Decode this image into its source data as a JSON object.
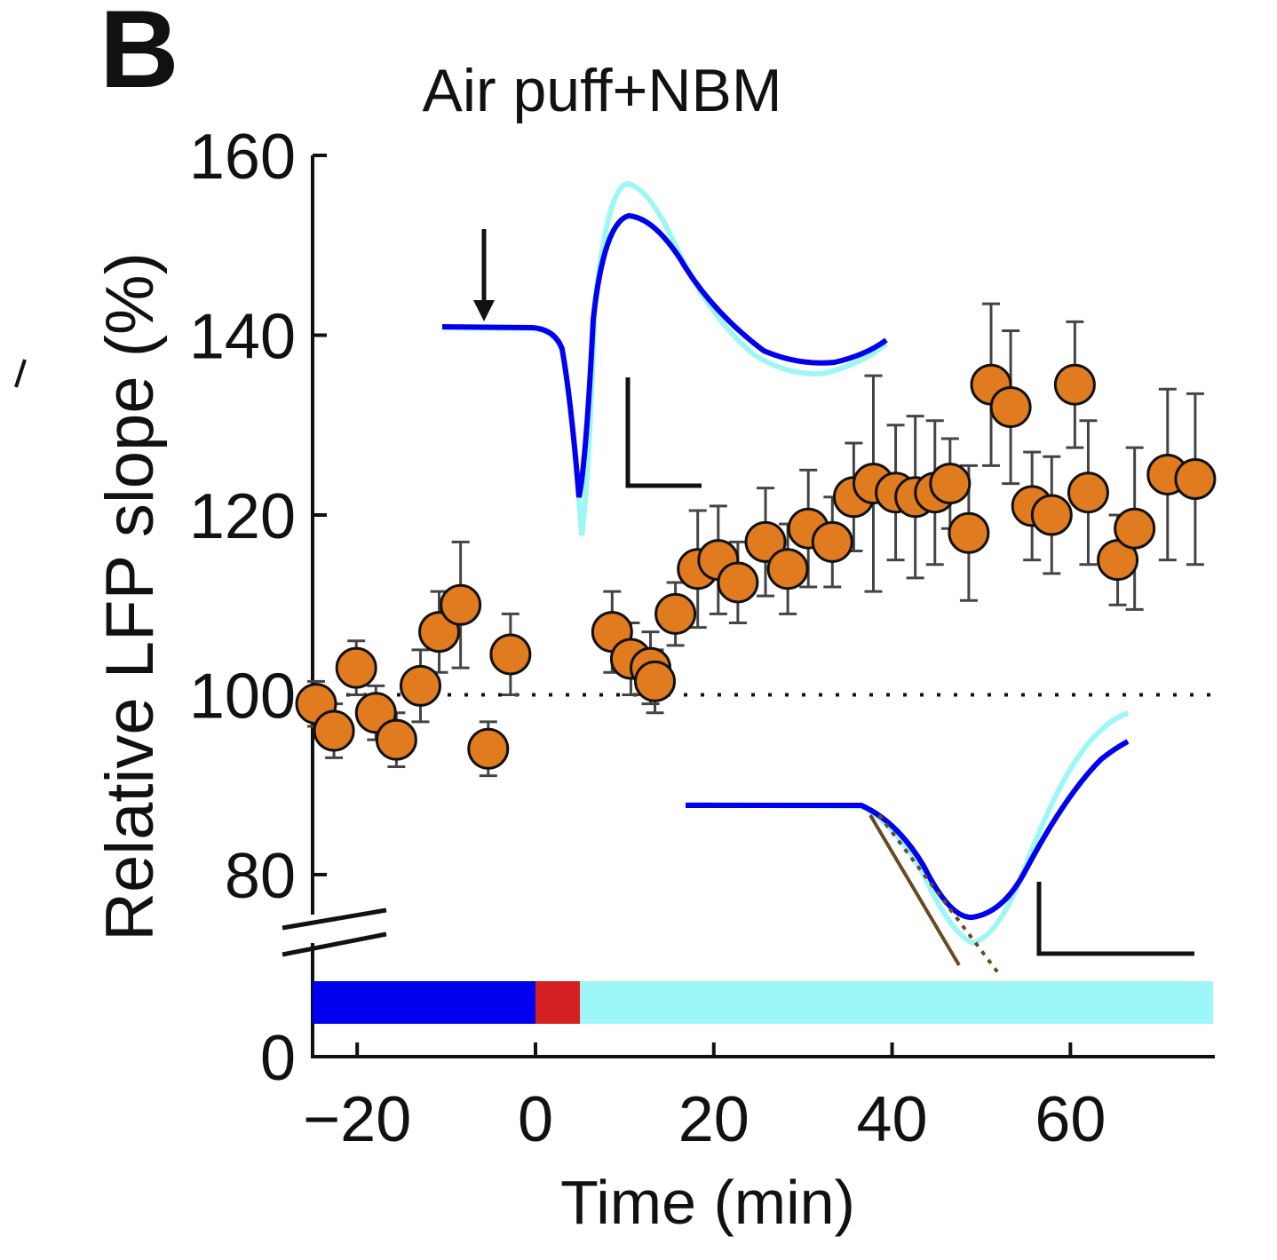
{
  "panel_label": "B",
  "chart_data": {
    "type": "scatter",
    "title": "Air puff+NBM",
    "xlabel": "Time (min)",
    "ylabel": "Relative LFP slope (%)",
    "x_ticks": [
      -20,
      0,
      20,
      40,
      60
    ],
    "x_tick_labels": [
      "−20",
      "0",
      "20",
      "40",
      "60"
    ],
    "y_ticks": [
      0,
      80,
      100,
      120,
      140,
      160
    ],
    "y_tick_labels": [
      "0",
      "80",
      "100",
      "120",
      "140",
      "160"
    ],
    "xlim": [
      -25,
      76
    ],
    "ylim": [
      0,
      160
    ],
    "y_axis_break": [
      0,
      80
    ],
    "reference_line": 100,
    "marker_color": "#e07b20",
    "condition_bar": [
      {
        "start": -25,
        "end": 0,
        "color": "#0000ee"
      },
      {
        "start": 0,
        "end": 5,
        "color": "#d42020"
      },
      {
        "start": 5,
        "end": 76,
        "color": "#9ef7f7"
      }
    ],
    "points": [
      {
        "x": -24.6,
        "y": 99,
        "err": 2.5
      },
      {
        "x": -22.6,
        "y": 96,
        "err": 3.0
      },
      {
        "x": -20.1,
        "y": 103,
        "err": 3.0
      },
      {
        "x": -17.9,
        "y": 98,
        "err": 3.0
      },
      {
        "x": -15.6,
        "y": 95,
        "err": 3.0
      },
      {
        "x": -12.9,
        "y": 101,
        "err": 4.0
      },
      {
        "x": -10.8,
        "y": 107,
        "err": 4.5
      },
      {
        "x": -8.4,
        "y": 110,
        "err": 7.0
      },
      {
        "x": -5.3,
        "y": 94,
        "err": 3.0
      },
      {
        "x": -2.8,
        "y": 104.5,
        "err": 4.5
      },
      {
        "x": 8.6,
        "y": 107,
        "err": 4.5
      },
      {
        "x": 10.7,
        "y": 104,
        "err": 4.0
      },
      {
        "x": 12.9,
        "y": 103,
        "err": 4.0
      },
      {
        "x": 13.4,
        "y": 101.5,
        "err": 3.5
      },
      {
        "x": 15.7,
        "y": 109,
        "err": 3.5
      },
      {
        "x": 18.2,
        "y": 114,
        "err": 6.5
      },
      {
        "x": 20.5,
        "y": 115,
        "err": 6.0
      },
      {
        "x": 22.7,
        "y": 112.5,
        "err": 4.5
      },
      {
        "x": 25.8,
        "y": 117,
        "err": 6.0
      },
      {
        "x": 28.3,
        "y": 114,
        "err": 5.0
      },
      {
        "x": 30.6,
        "y": 118.5,
        "err": 6.5
      },
      {
        "x": 33.3,
        "y": 117,
        "err": 5.0
      },
      {
        "x": 35.7,
        "y": 122,
        "err": 6.0
      },
      {
        "x": 37.9,
        "y": 123.5,
        "err": 12.0
      },
      {
        "x": 40.4,
        "y": 122.5,
        "err": 7.5
      },
      {
        "x": 42.6,
        "y": 122,
        "err": 9.0
      },
      {
        "x": 44.8,
        "y": 122.5,
        "err": 8.0
      },
      {
        "x": 46.5,
        "y": 123.5,
        "err": 5.0
      },
      {
        "x": 48.6,
        "y": 118,
        "err": 7.5
      },
      {
        "x": 51.1,
        "y": 134.5,
        "err": 9.0
      },
      {
        "x": 53.3,
        "y": 132,
        "err": 8.5
      },
      {
        "x": 55.7,
        "y": 121,
        "err": 6.0
      },
      {
        "x": 57.9,
        "y": 120,
        "err": 6.5
      },
      {
        "x": 60.5,
        "y": 134.5,
        "err": 7.0
      },
      {
        "x": 62.0,
        "y": 122.5,
        "err": 8.0
      },
      {
        "x": 65.3,
        "y": 115,
        "err": 5.0
      },
      {
        "x": 67.2,
        "y": 118.5,
        "err": 9.0
      },
      {
        "x": 70.9,
        "y": 124.5,
        "err": 9.5
      },
      {
        "x": 74.0,
        "y": 124,
        "err": 9.5
      }
    ]
  }
}
